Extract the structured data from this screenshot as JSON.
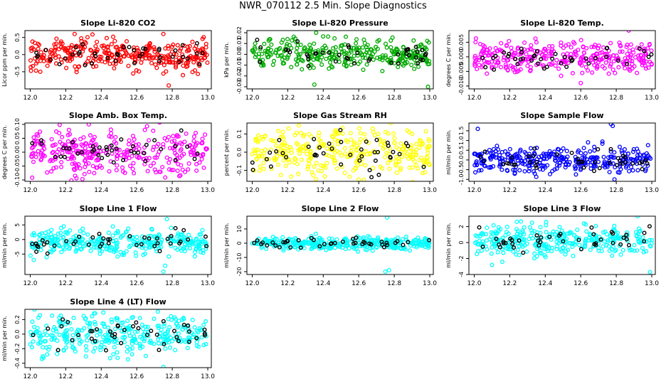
{
  "title": "NWR_070112  2.5 Min. Slope Diagnostics",
  "colors": {
    "overlay": "#000000",
    "frame": "#000000"
  },
  "panels": [
    {
      "id": "li820-co2",
      "title": "Slope Li-820 CO2",
      "ylabel": "Licor ppm per min.",
      "color": "#ff0000",
      "ylim": [
        -1.0,
        0.7
      ],
      "yticks": [
        {
          "v": 0.5,
          "l": "0.5"
        },
        {
          "v": 0.0,
          "l": "0.0"
        },
        {
          "v": -0.5,
          "l": "-0.5"
        }
      ],
      "xticks_shown": true
    },
    {
      "id": "li820-pressure",
      "title": "Slope Li-820 Pressure",
      "ylabel": "kPa per min.",
      "color": "#00aa00",
      "ylim": [
        -0.032,
        0.022
      ],
      "yticks": [
        {
          "v": 0.02,
          "l": "0.02"
        },
        {
          "v": 0.01,
          "l": "0.01"
        },
        {
          "v": 0.0,
          "l": "0.00"
        },
        {
          "v": -0.01,
          "l": "-0.01"
        },
        {
          "v": -0.02,
          "l": "-0.02"
        },
        {
          "v": -0.03,
          "l": "-0.03"
        }
      ],
      "xticks_shown": true
    },
    {
      "id": "li820-temp",
      "title": "Slope Li-820 Temp.",
      "ylabel": "degrees C per min.",
      "color": "#ff00ff",
      "ylim": [
        -0.011,
        0.009
      ],
      "yticks": [
        {
          "v": 0.005,
          "l": "0.005"
        },
        {
          "v": 0.0,
          "l": "0.000"
        },
        {
          "v": -0.005,
          "l": "-0.005"
        },
        {
          "v": -0.01,
          "l": "-0.010"
        }
      ],
      "xticks_shown": true
    },
    {
      "id": "amb-box-temp",
      "title": "Slope Amb. Box Temp.",
      "ylabel": "degrees C per min.",
      "color": "#ff00ff",
      "ylim": [
        -0.105,
        0.105
      ],
      "yticks": [
        {
          "v": 0.1,
          "l": "0.10"
        },
        {
          "v": 0.05,
          "l": "0.05"
        },
        {
          "v": 0.0,
          "l": "0.00"
        },
        {
          "v": -0.05,
          "l": "-0.05"
        },
        {
          "v": -0.1,
          "l": "-0.10"
        }
      ],
      "xticks_shown": true
    },
    {
      "id": "gas-stream-rh",
      "title": "Slope Gas Stream RH",
      "ylabel": "percent per min.",
      "color": "#ffff00",
      "ylim": [
        -0.16,
        0.16
      ],
      "yticks": [
        {
          "v": 0.1,
          "l": "0.1"
        },
        {
          "v": 0.0,
          "l": "0.0"
        },
        {
          "v": -0.1,
          "l": "-0.1"
        }
      ],
      "xticks_shown": true
    },
    {
      "id": "sample-flow",
      "title": "Slope Sample Flow",
      "ylabel": "ml/min per min.",
      "color": "#0000ff",
      "ylim": [
        -1.1,
        1.9
      ],
      "yticks": [
        {
          "v": 1.5,
          "l": "1.5"
        },
        {
          "v": 1.0,
          "l": "1.0"
        },
        {
          "v": 0.5,
          "l": "0.5"
        },
        {
          "v": 0.0,
          "l": "0.0"
        },
        {
          "v": -0.5,
          "l": "-0.5"
        },
        {
          "v": -1.0,
          "l": "-1.0"
        }
      ],
      "xticks_shown": true
    },
    {
      "id": "line1-flow",
      "title": "Slope Line 1 Flow",
      "ylabel": "ml/min per min.",
      "color": "#00ffff",
      "ylim": [
        -12,
        8
      ],
      "yticks": [
        {
          "v": 5,
          "l": "5"
        },
        {
          "v": 0,
          "l": "0"
        },
        {
          "v": -5,
          "l": "-5"
        }
      ],
      "xticks_shown": true
    },
    {
      "id": "line2-flow",
      "title": "Slope Line 2 Flow",
      "ylabel": "ml/min per min.",
      "color": "#00ffff",
      "ylim": [
        -22,
        19
      ],
      "yticks": [
        {
          "v": 10,
          "l": "10"
        },
        {
          "v": 0,
          "l": "0"
        },
        {
          "v": -10,
          "l": "-10"
        },
        {
          "v": -20,
          "l": "-20"
        }
      ],
      "xticks_shown": true
    },
    {
      "id": "line3-flow",
      "title": "Slope Line 3 Flow",
      "ylabel": "ml/min per min.",
      "color": "#00ffff",
      "ylim": [
        -4,
        3.3
      ],
      "yticks": [
        {
          "v": 2,
          "l": "2"
        },
        {
          "v": 0,
          "l": "0"
        },
        {
          "v": -2,
          "l": "-2"
        },
        {
          "v": -4,
          "l": "-4"
        }
      ],
      "xticks_shown": true
    },
    {
      "id": "line4-flow",
      "title": "Slope Line 4 (LT) Flow",
      "ylabel": "ml/min per min.",
      "color": "#00ffff",
      "ylim": [
        -0.46,
        0.34
      ],
      "yticks": [
        {
          "v": 0.2,
          "l": "0.2"
        },
        {
          "v": 0.0,
          "l": "0.0"
        },
        {
          "v": -0.2,
          "l": "-0.2"
        },
        {
          "v": -0.4,
          "l": "-0.4"
        }
      ],
      "xticks_shown": true
    }
  ],
  "xaxis": {
    "xlim": [
      11.97,
      13.02
    ],
    "ticks": [
      {
        "v": 12.0,
        "l": "12.0"
      },
      {
        "v": 12.2,
        "l": "12.2"
      },
      {
        "v": 12.4,
        "l": "12.4"
      },
      {
        "v": 12.6,
        "l": "12.6"
      },
      {
        "v": 12.8,
        "l": "12.8"
      },
      {
        "v": 13.0,
        "l": "13.0"
      }
    ]
  },
  "chart_data": {
    "type": "scatter",
    "x_range": [
      12.0,
      13.0
    ],
    "series_note": "",
    "panels": [
      {
        "title": "Slope Li-820 CO2",
        "ylabel": "Licor ppm per min.",
        "typical_range": [
          -0.4,
          0.4
        ],
        "outliers": [
          [
            12.25,
            0.6
          ],
          [
            12.75,
            0.6
          ],
          [
            12.58,
            -0.55
          ],
          [
            12.86,
            -0.6
          ],
          [
            12.78,
            -0.9
          ]
        ]
      },
      {
        "title": "Slope Li-820 Pressure",
        "ylabel": "kPa per min.",
        "typical_range": [
          -0.012,
          0.012
        ],
        "outliers": [
          [
            12.36,
            0.02
          ],
          [
            12.35,
            -0.028
          ],
          [
            12.99,
            -0.03
          ]
        ]
      },
      {
        "title": "Slope Li-820 Temp.",
        "ylabel": "degrees C per min.",
        "typical_range": [
          -0.005,
          0.005
        ],
        "outliers": [
          [
            12.87,
            0.009
          ],
          [
            12.6,
            -0.009
          ]
        ]
      },
      {
        "title": "Slope Amb. Box Temp.",
        "ylabel": "degrees C per min.",
        "typical_range": [
          -0.07,
          0.07
        ],
        "outliers": [
          [
            12.33,
            0.1
          ]
        ]
      },
      {
        "title": "Slope Gas Stream RH",
        "ylabel": "percent per min.",
        "typical_range": [
          -0.12,
          0.12
        ],
        "outliers": [
          [
            12.78,
            0.16
          ],
          [
            12.6,
            -0.15
          ]
        ]
      },
      {
        "title": "Slope Sample Flow",
        "ylabel": "ml/min per min.",
        "typical_range": [
          -0.6,
          0.6
        ],
        "outliers": [
          [
            12.02,
            1.6
          ],
          [
            12.77,
            1.85
          ],
          [
            12.78,
            1.75
          ],
          [
            12.79,
            -1.0
          ]
        ]
      },
      {
        "title": "Slope Line 1 Flow",
        "ylabel": "ml/min per min.",
        "typical_range": [
          -5,
          3
        ],
        "outliers": [
          [
            12.77,
            7
          ],
          [
            12.76,
            -9
          ],
          [
            12.75,
            -11
          ],
          [
            12.02,
            -7
          ]
        ]
      },
      {
        "title": "Slope Line 2 Flow",
        "ylabel": "ml/min per min.",
        "typical_range": [
          -4,
          4
        ],
        "outliers": [
          [
            12.76,
            18
          ],
          [
            12.75,
            -20
          ],
          [
            12.77,
            -19
          ]
        ]
      },
      {
        "title": "Slope Line 3 Flow",
        "ylabel": "ml/min per min.",
        "typical_range": [
          -1.5,
          2
        ],
        "outliers": [
          [
            12.99,
            -3.7
          ],
          [
            12.92,
            3.3
          ],
          [
            12.1,
            -2.8
          ]
        ]
      },
      {
        "title": "Slope Line 4 (LT) Flow",
        "ylabel": "ml/min per min.",
        "typical_range": [
          -0.25,
          0.25
        ],
        "outliers": [
          [
            12.75,
            -0.45
          ],
          [
            12.45,
            -0.33
          ]
        ]
      }
    ]
  }
}
